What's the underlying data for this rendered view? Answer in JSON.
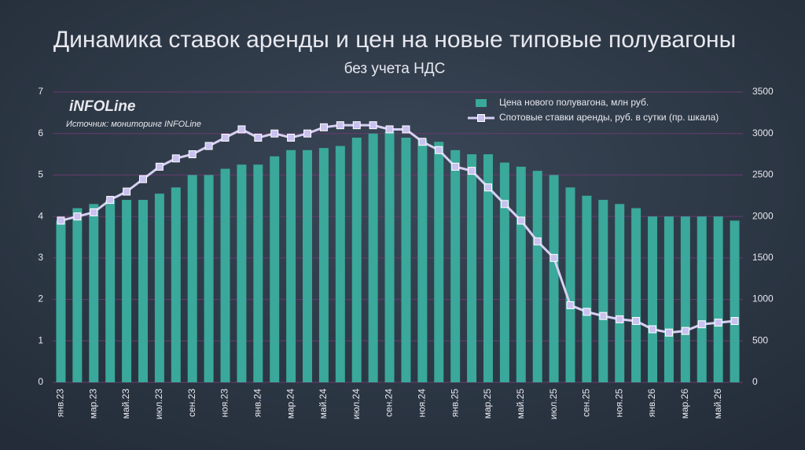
{
  "chart_data": {
    "type": "bar",
    "title": "Динамика ставок аренды и цен на новые типовые полувагоны",
    "subtitle": "без учета НДС",
    "logo": "iNFOLine",
    "source": "Источник: мониторинг INFOLine",
    "categories": [
      "янв.23",
      null,
      "мар.23",
      null,
      "май.23",
      null,
      "июл.23",
      null,
      "сен.23",
      null,
      "ноя.23",
      null,
      "янв.24",
      null,
      "мар.24",
      null,
      "май.24",
      null,
      "июл.24",
      null,
      "сен.24",
      null,
      "ноя.24",
      null,
      "янв.25",
      null,
      "мар.25",
      null,
      "май.25",
      null,
      "июл.25",
      null,
      "сен.25",
      null,
      "ноя.25",
      null,
      "янв.26",
      null,
      "мар.26",
      null,
      "май.26",
      null
    ],
    "series": [
      {
        "name": "Цена нового полувагона, млн руб.",
        "type": "bar",
        "color": "#3aa89a",
        "values": [
          3.9,
          4.2,
          4.3,
          4.4,
          4.4,
          4.4,
          4.55,
          4.7,
          5.0,
          5.0,
          5.15,
          5.25,
          5.25,
          5.45,
          5.6,
          5.6,
          5.65,
          5.7,
          5.9,
          6.0,
          6.05,
          5.9,
          5.85,
          5.8,
          5.6,
          5.5,
          5.5,
          5.3,
          5.2,
          5.1,
          5.0,
          4.7,
          4.5,
          4.4,
          4.3,
          4.2,
          4.0,
          4.0,
          4.0,
          4.0,
          4.0,
          3.9
        ]
      },
      {
        "name": "Спотовые ставки аренды, руб. в сутки (пр. шкала)",
        "type": "line",
        "axis": "y2",
        "color": "#d6d0f2",
        "values": [
          1950,
          2000,
          2050,
          2200,
          2300,
          2450,
          2600,
          2700,
          2750,
          2850,
          2950,
          3050,
          2950,
          3000,
          2950,
          3000,
          3075,
          3100,
          3100,
          3100,
          3050,
          3050,
          2900,
          2800,
          2600,
          2550,
          2350,
          2150,
          1950,
          1700,
          1500,
          930,
          850,
          800,
          760,
          740,
          640,
          600,
          620,
          700,
          720,
          740
        ]
      }
    ],
    "ylim": [
      0,
      7
    ],
    "yticks": [
      0,
      1,
      2,
      3,
      4,
      5,
      6,
      7
    ],
    "y2lim": [
      0,
      3500
    ],
    "y2ticks": [
      0,
      500,
      1000,
      1500,
      2000,
      2500,
      3000,
      3500
    ],
    "grid": true,
    "legend": "upper right"
  }
}
